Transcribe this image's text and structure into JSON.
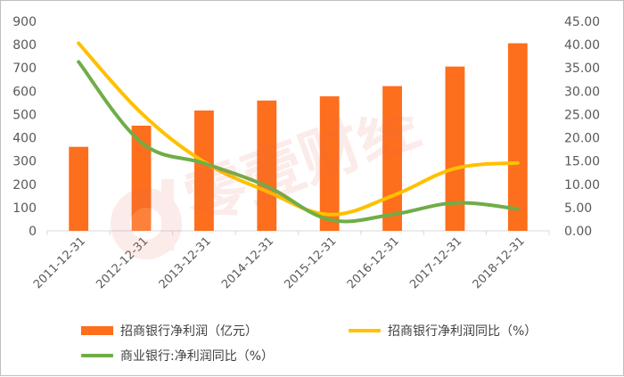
{
  "chart_data": {
    "type": "bar+line",
    "categories": [
      "2011-12-31",
      "2012-12-31",
      "2013-12-31",
      "2014-12-31",
      "2015-12-31",
      "2016-12-31",
      "2017-12-31",
      "2018-12-31"
    ],
    "series": [
      {
        "name": "招商银行净利润（亿元）",
        "type": "bar",
        "axis": "left",
        "color": "#fd6e1d",
        "values": [
          361,
          452,
          517,
          560,
          578,
          622,
          706,
          806
        ]
      },
      {
        "name": "招商银行净利润同比（%）",
        "type": "line",
        "axis": "right",
        "color": "#ffc000",
        "values": [
          40.3,
          25.3,
          14.8,
          8.5,
          3.5,
          7.5,
          13.4,
          14.6
        ]
      },
      {
        "name": "商业银行:净利润同比（%）",
        "type": "line",
        "axis": "right",
        "color": "#70ad47",
        "values": [
          36.3,
          19.0,
          14.5,
          9.6,
          2.4,
          3.5,
          6.0,
          4.7
        ]
      }
    ],
    "y_left": {
      "min": 0,
      "max": 900,
      "step": 100,
      "ticks": [
        "0",
        "100",
        "200",
        "300",
        "400",
        "500",
        "600",
        "700",
        "800",
        "900"
      ]
    },
    "y_right": {
      "min": 0,
      "max": 45,
      "step": 5,
      "ticks": [
        "0.00",
        "5.00",
        "10.00",
        "15.00",
        "20.00",
        "25.00",
        "30.00",
        "35.00",
        "40.00",
        "45.00"
      ]
    },
    "grid": false,
    "legend_position": "bottom"
  },
  "watermark": {
    "text": "零壹财经",
    "color": "#e36c5c"
  }
}
